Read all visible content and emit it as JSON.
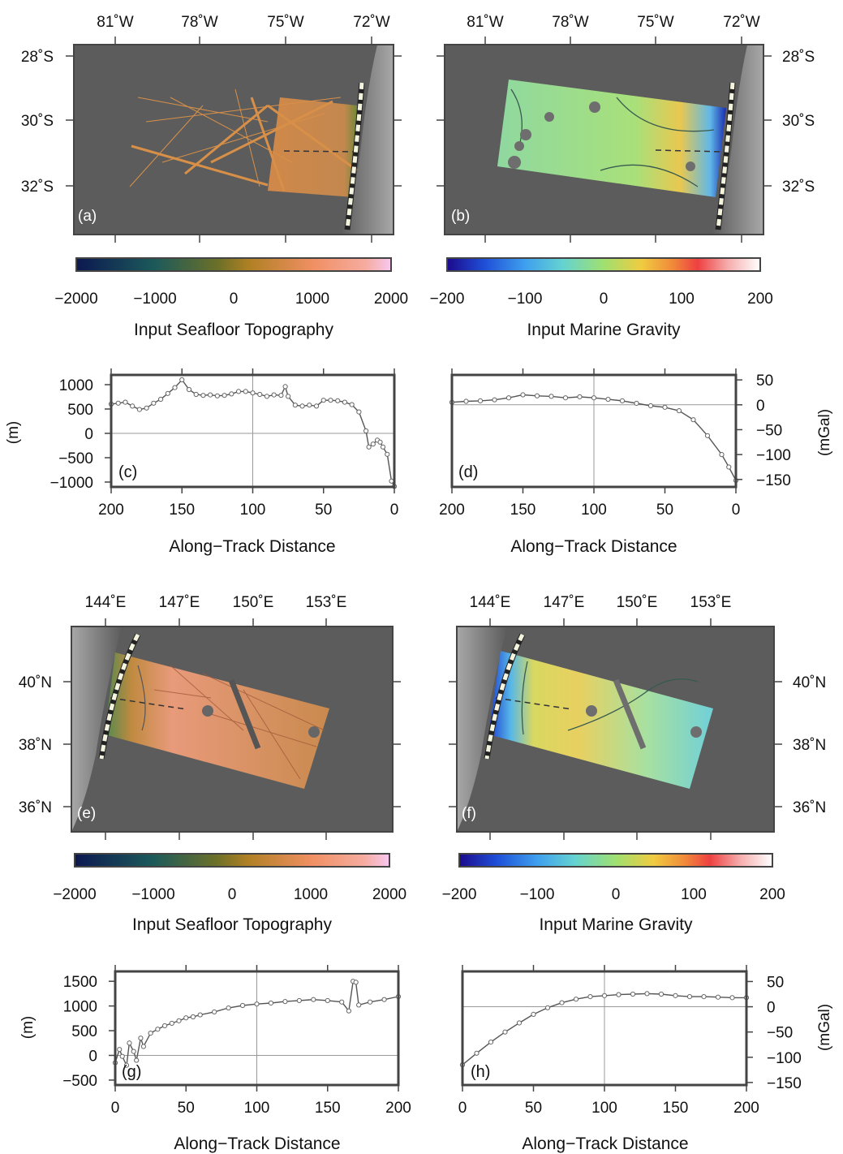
{
  "figure": {
    "panels": {
      "a": {
        "label": "(a)"
      },
      "b": {
        "label": "(b)"
      },
      "c": {
        "label": "(c)"
      },
      "d": {
        "label": "(d)"
      },
      "e": {
        "label": "(e)"
      },
      "f": {
        "label": "(f)"
      },
      "g": {
        "label": "(g)"
      },
      "h": {
        "label": "(h)"
      }
    },
    "maps": {
      "top_lon_ticks": [
        "81˚W",
        "78˚W",
        "75˚W",
        "72˚W"
      ],
      "top_lat_ticks": [
        "28˚S",
        "30˚S",
        "32˚S"
      ],
      "bottom_lon_ticks": [
        "144˚E",
        "147˚E",
        "150˚E",
        "153˚E"
      ],
      "bottom_lat_ticks": [
        "40˚N",
        "38˚N",
        "36˚N"
      ]
    },
    "colorbars": {
      "topography": {
        "label": "Input Seafloor Topography",
        "ticks": [
          "−2000",
          "−1000",
          "0",
          "1000",
          "2000"
        ]
      },
      "gravity": {
        "label": "Input Marine Gravity",
        "ticks": [
          "−200",
          "−100",
          "0",
          "100",
          "200"
        ]
      }
    },
    "profiles": {
      "xlabel": "Along−Track Distance",
      "ylabel_topo": "(m)",
      "ylabel_grav": "(mGal)"
    },
    "colors": {
      "map_background": "#5c5c5c",
      "trench": "#9a9a9a",
      "topo_swath": "#c98a4e",
      "grav_swath": "#8fd49a",
      "profile_line": "#555555",
      "frame": "#444444"
    }
  },
  "chart_data": [
    {
      "type": "line",
      "panel": "c",
      "xlabel": "Along−Track Distance",
      "ylabel": "(m)",
      "xlim": [
        200,
        0
      ],
      "ylim": [
        -1100,
        1200
      ],
      "xticks": [
        200,
        150,
        100,
        50,
        0
      ],
      "yticks": [
        "1000",
        "500",
        "0",
        "−500",
        "−1000"
      ],
      "x": [
        200,
        195,
        190,
        185,
        180,
        175,
        170,
        165,
        160,
        155,
        150,
        145,
        140,
        135,
        130,
        125,
        120,
        115,
        110,
        105,
        100,
        95,
        90,
        85,
        80,
        77,
        75,
        70,
        65,
        60,
        55,
        50,
        45,
        40,
        35,
        30,
        25,
        20,
        18,
        15,
        12,
        10,
        8,
        5,
        2,
        0
      ],
      "y": [
        600,
        620,
        640,
        560,
        490,
        520,
        620,
        700,
        820,
        940,
        1100,
        900,
        800,
        780,
        790,
        770,
        780,
        810,
        860,
        860,
        830,
        800,
        760,
        790,
        780,
        960,
        760,
        580,
        560,
        580,
        560,
        680,
        680,
        670,
        640,
        590,
        440,
        50,
        -280,
        -220,
        -140,
        -180,
        -280,
        -430,
        -980,
        -1090
      ]
    },
    {
      "type": "line",
      "panel": "d",
      "xlabel": "Along−Track Distance",
      "ylabel": "(mGal)",
      "xlim": [
        200,
        0
      ],
      "ylim": [
        -165,
        60
      ],
      "xticks": [
        200,
        150,
        100,
        50,
        0
      ],
      "yticks": [
        "50",
        "0",
        "−50",
        "−100",
        "−150"
      ],
      "x": [
        200,
        190,
        180,
        170,
        160,
        150,
        140,
        130,
        120,
        110,
        100,
        90,
        80,
        70,
        60,
        50,
        40,
        30,
        20,
        10,
        5,
        0
      ],
      "y": [
        5,
        7,
        8,
        10,
        14,
        20,
        18,
        17,
        14,
        16,
        14,
        11,
        8,
        3,
        -2,
        -5,
        -12,
        -30,
        -62,
        -100,
        -125,
        -152
      ]
    },
    {
      "type": "line",
      "panel": "g",
      "xlabel": "Along−Track Distance",
      "ylabel": "(m)",
      "xlim": [
        0,
        200
      ],
      "ylim": [
        -600,
        1700
      ],
      "xticks": [
        0,
        50,
        100,
        150,
        200
      ],
      "yticks": [
        "1500",
        "1000",
        "500",
        "0",
        "−500"
      ],
      "x": [
        0,
        3,
        5,
        8,
        10,
        13,
        15,
        18,
        20,
        25,
        30,
        35,
        40,
        45,
        50,
        55,
        60,
        70,
        80,
        90,
        100,
        110,
        120,
        130,
        140,
        150,
        160,
        165,
        168,
        170,
        172,
        180,
        190,
        200
      ],
      "y": [
        -150,
        120,
        -20,
        -200,
        250,
        80,
        -100,
        350,
        180,
        450,
        530,
        600,
        650,
        700,
        760,
        780,
        820,
        880,
        960,
        1010,
        1040,
        1060,
        1090,
        1110,
        1130,
        1110,
        1080,
        900,
        1500,
        1480,
        1020,
        1080,
        1130,
        1190
      ]
    },
    {
      "type": "line",
      "panel": "h",
      "xlabel": "Along−Track Distance",
      "ylabel": "(mGal)",
      "xlim": [
        0,
        200
      ],
      "ylim": [
        -155,
        70
      ],
      "xticks": [
        0,
        50,
        100,
        150,
        200
      ],
      "yticks": [
        "50",
        "0",
        "−50",
        "−100",
        "−150"
      ],
      "x": [
        0,
        10,
        20,
        30,
        40,
        50,
        60,
        70,
        80,
        90,
        100,
        110,
        120,
        130,
        140,
        150,
        160,
        170,
        180,
        190,
        200
      ],
      "y": [
        -115,
        -92,
        -70,
        -50,
        -32,
        -15,
        -2,
        8,
        15,
        20,
        22,
        24,
        25,
        26,
        25,
        22,
        20,
        20,
        19,
        18,
        18
      ]
    }
  ]
}
